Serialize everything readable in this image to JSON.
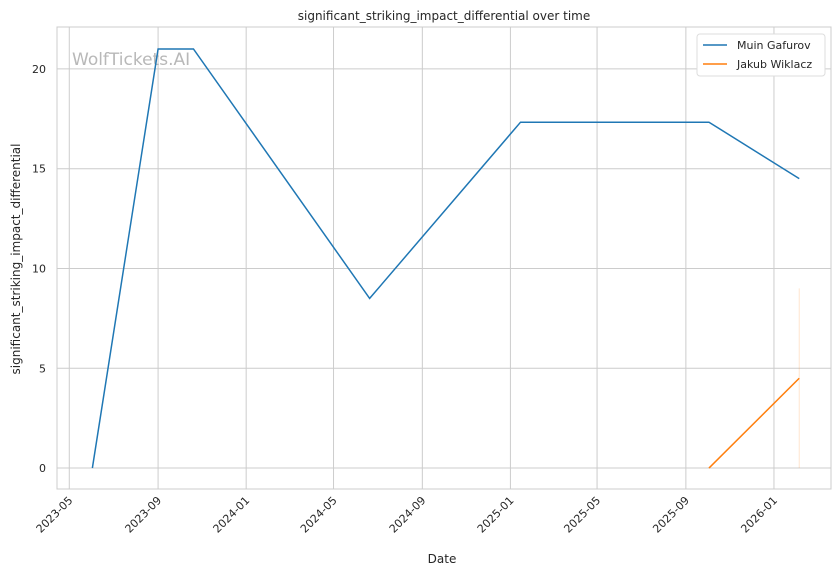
{
  "chart_data": {
    "type": "line",
    "title": "significant_striking_impact_differential over time",
    "xlabel": "Date",
    "ylabel": "significant_striking_impact_differential",
    "watermark": "WolfTickets.AI",
    "x_ticks": [
      "2023-05",
      "2023-09",
      "2024-01",
      "2024-05",
      "2024-09",
      "2025-01",
      "2025-05",
      "2025-09",
      "2026-01"
    ],
    "y_ticks": [
      0,
      5,
      10,
      15,
      20
    ],
    "ylim": [
      -1.05,
      22.1
    ],
    "xlim": [
      "2023-04-14",
      "2026-03-21"
    ],
    "grid": true,
    "legend_position": "top-right",
    "series": [
      {
        "name": "Muin Gafurov",
        "color": "#1f77b4",
        "x": [
          "2023-06-02",
          "2023-09-01",
          "2023-10-20",
          "2024-06-20",
          "2025-01-15",
          "2025-10-03",
          "2026-02-05"
        ],
        "y": [
          0,
          21,
          21,
          8.5,
          17.33,
          17.33,
          14.5
        ]
      },
      {
        "name": "Jakub Wiklacz",
        "color": "#ff7f0e",
        "x": [
          "2025-10-03",
          "2026-02-05"
        ],
        "y": [
          0,
          4.5
        ],
        "band_at_last": [
          0,
          9
        ]
      }
    ]
  }
}
